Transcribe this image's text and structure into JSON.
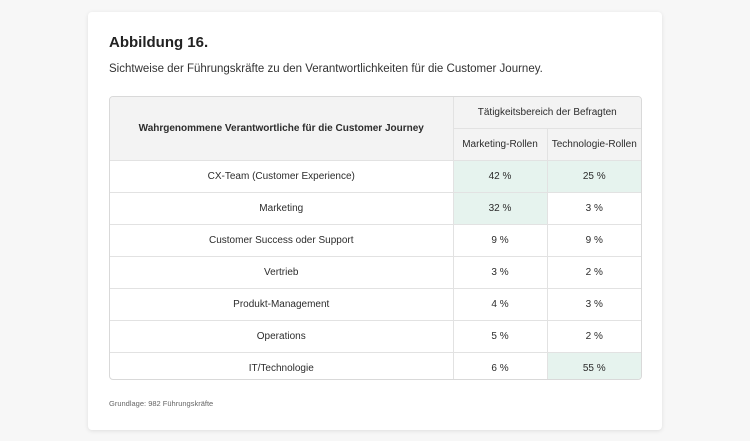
{
  "figure": {
    "title": "Abbildung 16.",
    "subtitle": "Sichtweise der Führungskräfte zu den Verantwortlichkeiten für die Customer Journey."
  },
  "table": {
    "row_header": "Wahrgenommene Verantwortliche für die Customer Journey",
    "group_header": "Tätigkeitsbereich der Befragten",
    "columns": [
      "Marketing-Rollen",
      "Technologie-Rollen"
    ],
    "rows": [
      {
        "label": "CX-Team (Customer Experience)",
        "values": [
          "42 %",
          "25 %"
        ],
        "highlight": [
          true,
          true
        ]
      },
      {
        "label": "Marketing",
        "values": [
          "32 %",
          "3 %"
        ],
        "highlight": [
          true,
          false
        ]
      },
      {
        "label": "Customer Success oder Support",
        "values": [
          "9 %",
          "9 %"
        ],
        "highlight": [
          false,
          false
        ]
      },
      {
        "label": "Vertrieb",
        "values": [
          "3 %",
          "2 %"
        ],
        "highlight": [
          false,
          false
        ]
      },
      {
        "label": "Produkt-Management",
        "values": [
          "4 %",
          "3 %"
        ],
        "highlight": [
          false,
          false
        ]
      },
      {
        "label": "Operations",
        "values": [
          "5 %",
          "2 %"
        ],
        "highlight": [
          false,
          false
        ]
      },
      {
        "label": "IT/Technologie",
        "values": [
          "6 %",
          "55 %"
        ],
        "highlight": [
          false,
          true
        ]
      }
    ],
    "highlight_color": "#e6f3ee"
  },
  "footnote": "Grundlage: 982 Führungskräfte"
}
